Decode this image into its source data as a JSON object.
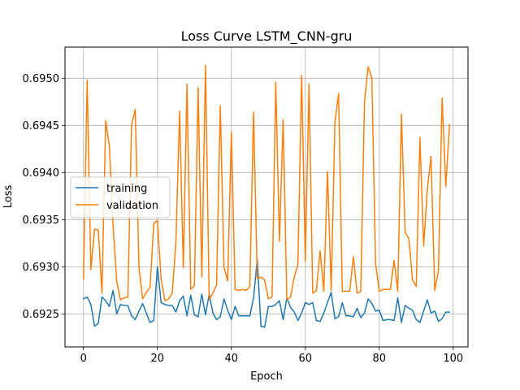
{
  "chart_data": {
    "type": "line",
    "title": "Loss Curve LSTM_CNN-gru",
    "xlabel": "Epoch",
    "ylabel": "Loss",
    "xlim": [
      -5,
      104
    ],
    "ylim": [
      0.69215,
      0.69533
    ],
    "xticks": [
      0,
      20,
      40,
      60,
      80,
      100
    ],
    "yticks": [
      0.6925,
      0.693,
      0.6935,
      0.694,
      0.6945,
      0.695
    ],
    "ytick_decimals": 4,
    "grid": true,
    "legend_position": "center-left",
    "x": [
      0,
      1,
      2,
      3,
      4,
      5,
      6,
      7,
      8,
      9,
      10,
      11,
      12,
      13,
      14,
      15,
      16,
      17,
      18,
      19,
      20,
      21,
      22,
      23,
      24,
      25,
      26,
      27,
      28,
      29,
      30,
      31,
      32,
      33,
      34,
      35,
      36,
      37,
      38,
      39,
      40,
      41,
      42,
      43,
      44,
      45,
      46,
      47,
      48,
      49,
      50,
      51,
      52,
      53,
      54,
      55,
      56,
      57,
      58,
      59,
      60,
      61,
      62,
      63,
      64,
      65,
      66,
      67,
      68,
      69,
      70,
      71,
      72,
      73,
      74,
      75,
      76,
      77,
      78,
      79,
      80,
      81,
      82,
      83,
      84,
      85,
      86,
      87,
      88,
      89,
      90,
      91,
      92,
      93,
      94,
      95,
      96,
      97,
      98,
      99
    ],
    "series": [
      {
        "name": "training",
        "color": "#1f77b4",
        "values": [
          0.69266,
          0.69268,
          0.6926,
          0.69237,
          0.6924,
          0.69268,
          0.69264,
          0.69258,
          0.69275,
          0.6925,
          0.6926,
          0.69259,
          0.69259,
          0.69248,
          0.69244,
          0.69253,
          0.69261,
          0.69251,
          0.69241,
          0.69243,
          0.693,
          0.69262,
          0.6926,
          0.69259,
          0.69259,
          0.69252,
          0.69264,
          0.69269,
          0.69248,
          0.6927,
          0.69249,
          0.69247,
          0.69271,
          0.69249,
          0.69271,
          0.69251,
          0.69244,
          0.69247,
          0.69266,
          0.69254,
          0.69244,
          0.69258,
          0.69248,
          0.69248,
          0.69248,
          0.69248,
          0.69267,
          0.69308,
          0.69237,
          0.69236,
          0.69258,
          0.69258,
          0.6926,
          0.69264,
          0.69244,
          0.69267,
          0.69257,
          0.69252,
          0.69243,
          0.69251,
          0.69262,
          0.6926,
          0.69262,
          0.69243,
          0.69242,
          0.69251,
          0.69262,
          0.69273,
          0.69245,
          0.69247,
          0.69262,
          0.69248,
          0.69248,
          0.69247,
          0.69256,
          0.69246,
          0.69251,
          0.69266,
          0.69261,
          0.69253,
          0.69254,
          0.69243,
          0.69244,
          0.69244,
          0.69243,
          0.69267,
          0.69241,
          0.69259,
          0.69256,
          0.69254,
          0.69244,
          0.69241,
          0.69253,
          0.69265,
          0.69251,
          0.69253,
          0.69242,
          0.69245,
          0.69252,
          0.69252
        ]
      },
      {
        "name": "validation",
        "color": "#ff7f0e",
        "values": [
          0.69287,
          0.69498,
          0.69297,
          0.6934,
          0.69339,
          0.69272,
          0.69455,
          0.69428,
          0.69344,
          0.69284,
          0.69265,
          0.69267,
          0.69268,
          0.6945,
          0.69467,
          0.693,
          0.69266,
          0.69273,
          0.69278,
          0.69346,
          0.69349,
          0.69287,
          0.69264,
          0.69266,
          0.69272,
          0.69326,
          0.69465,
          0.69299,
          0.69494,
          0.69276,
          0.6928,
          0.6949,
          0.69289,
          0.69514,
          0.69265,
          0.69272,
          0.69281,
          0.69471,
          0.693,
          0.69285,
          0.69443,
          0.69276,
          0.69275,
          0.69276,
          0.69275,
          0.69279,
          0.69464,
          0.69288,
          0.69289,
          0.69286,
          0.69266,
          0.69268,
          0.69496,
          0.69327,
          0.69456,
          0.69265,
          0.69268,
          0.69289,
          0.69303,
          0.69503,
          0.69306,
          0.69494,
          0.69272,
          0.69275,
          0.69317,
          0.69274,
          0.69401,
          0.69275,
          0.69453,
          0.69484,
          0.69274,
          0.69274,
          0.69274,
          0.69311,
          0.69272,
          0.69274,
          0.69475,
          0.69512,
          0.695,
          0.69304,
          0.69274,
          0.69276,
          0.69276,
          0.69276,
          0.69307,
          0.69274,
          0.69462,
          0.69336,
          0.6933,
          0.69286,
          0.69279,
          0.69437,
          0.69322,
          0.69382,
          0.69417,
          0.69275,
          0.69296,
          0.69479,
          0.69385,
          0.69451
        ]
      }
    ]
  }
}
